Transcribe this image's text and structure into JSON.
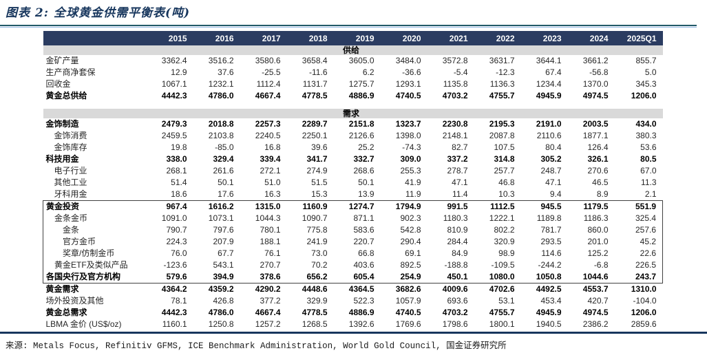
{
  "page": {
    "title": "图表 2: 全球黄金供需平衡表(吨)",
    "source": "来源: Metals Focus, Refinitiv GFMS, ICE Benchmark Administration, World Gold Council, 国金证券研究所"
  },
  "colors": {
    "header_bg": "#2b3c61",
    "band_bg": "#d9d9d9",
    "title_navy": "#17365d",
    "rule_teal": "#215968",
    "rule_light_blue": "#8db3e2",
    "box_border": "#404040"
  },
  "table": {
    "columns": [
      "2015",
      "2016",
      "2017",
      "2018",
      "2019",
      "2020",
      "2021",
      "2022",
      "2023",
      "2024",
      "2025Q1"
    ],
    "sections": [
      {
        "band": "供给",
        "rows": [
          {
            "label": "金矿产量",
            "indent": 0,
            "bold": false,
            "box": false,
            "values": [
              "3362.4",
              "3516.2",
              "3580.6",
              "3658.4",
              "3605.0",
              "3484.0",
              "3572.8",
              "3631.7",
              "3644.1",
              "3661.2",
              "855.7"
            ]
          },
          {
            "label": "生产商净套保",
            "indent": 0,
            "bold": false,
            "box": false,
            "values": [
              "12.9",
              "37.6",
              "-25.5",
              "-11.6",
              "6.2",
              "-36.6",
              "-5.4",
              "-12.3",
              "67.4",
              "-56.8",
              "5.0"
            ]
          },
          {
            "label": "回收金",
            "indent": 0,
            "bold": false,
            "box": false,
            "values": [
              "1067.1",
              "1232.1",
              "1112.4",
              "1131.7",
              "1275.7",
              "1293.1",
              "1135.8",
              "1136.3",
              "1234.4",
              "1370.0",
              "345.3"
            ]
          },
          {
            "label": "黄金总供给",
            "indent": 0,
            "bold": true,
            "box": false,
            "values": [
              "4442.3",
              "4786.0",
              "4667.4",
              "4778.5",
              "4886.9",
              "4740.5",
              "4703.2",
              "4755.7",
              "4945.9",
              "4974.5",
              "1206.0"
            ]
          }
        ]
      },
      {
        "band": "需求",
        "rows": [
          {
            "label": "金饰制造",
            "indent": 0,
            "bold": true,
            "box": false,
            "values": [
              "2479.3",
              "2018.8",
              "2257.3",
              "2289.7",
              "2151.8",
              "1323.7",
              "2230.8",
              "2195.3",
              "2191.0",
              "2003.5",
              "434.0"
            ]
          },
          {
            "label": "金饰消费",
            "indent": 1,
            "bold": false,
            "box": false,
            "values": [
              "2459.5",
              "2103.8",
              "2240.5",
              "2250.1",
              "2126.6",
              "1398.0",
              "2148.1",
              "2087.8",
              "2110.6",
              "1877.1",
              "380.3"
            ]
          },
          {
            "label": "金饰库存",
            "indent": 1,
            "bold": false,
            "box": false,
            "values": [
              "19.8",
              "-85.0",
              "16.8",
              "39.6",
              "25.2",
              "-74.3",
              "82.7",
              "107.5",
              "80.4",
              "126.4",
              "53.6"
            ]
          },
          {
            "label": "科技用金",
            "indent": 0,
            "bold": true,
            "box": false,
            "values": [
              "338.0",
              "329.4",
              "339.4",
              "341.7",
              "332.7",
              "309.0",
              "337.2",
              "314.8",
              "305.2",
              "326.1",
              "80.5"
            ]
          },
          {
            "label": "电子行业",
            "indent": 1,
            "bold": false,
            "box": false,
            "values": [
              "268.1",
              "261.6",
              "272.1",
              "274.9",
              "268.6",
              "255.3",
              "278.7",
              "257.7",
              "248.7",
              "270.6",
              "67.0"
            ]
          },
          {
            "label": "其他工业",
            "indent": 1,
            "bold": false,
            "box": false,
            "values": [
              "51.4",
              "50.1",
              "51.0",
              "51.5",
              "50.1",
              "41.9",
              "47.1",
              "46.8",
              "47.1",
              "46.5",
              "11.3"
            ]
          },
          {
            "label": "牙科用金",
            "indent": 1,
            "bold": false,
            "box": false,
            "values": [
              "18.6",
              "17.6",
              "16.3",
              "15.3",
              "13.9",
              "11.9",
              "11.4",
              "10.3",
              "9.4",
              "8.9",
              "2.1"
            ]
          },
          {
            "label": "黄金投资",
            "indent": 0,
            "bold": true,
            "box": true,
            "values": [
              "967.4",
              "1616.2",
              "1315.0",
              "1160.9",
              "1274.7",
              "1794.9",
              "991.5",
              "1112.5",
              "945.5",
              "1179.5",
              "551.9"
            ]
          },
          {
            "label": "金条金币",
            "indent": 1,
            "bold": false,
            "box": true,
            "values": [
              "1091.0",
              "1073.1",
              "1044.3",
              "1090.7",
              "871.1",
              "902.3",
              "1180.3",
              "1222.1",
              "1189.8",
              "1186.3",
              "325.4"
            ]
          },
          {
            "label": "金条",
            "indent": 2,
            "bold": false,
            "box": true,
            "values": [
              "790.7",
              "797.6",
              "780.1",
              "775.8",
              "583.6",
              "542.8",
              "810.9",
              "802.2",
              "781.7",
              "860.0",
              "257.6"
            ]
          },
          {
            "label": "官方金币",
            "indent": 2,
            "bold": false,
            "box": true,
            "values": [
              "224.3",
              "207.9",
              "188.1",
              "241.9",
              "220.7",
              "290.4",
              "284.4",
              "320.9",
              "293.5",
              "201.0",
              "45.2"
            ]
          },
          {
            "label": "奖章/仿制金币",
            "indent": 2,
            "bold": false,
            "box": true,
            "values": [
              "76.0",
              "67.7",
              "76.1",
              "73.0",
              "66.8",
              "69.1",
              "84.9",
              "98.9",
              "114.6",
              "125.2",
              "22.6"
            ]
          },
          {
            "label": "黄金ETF及类似产品",
            "indent": 1,
            "bold": false,
            "box": true,
            "values": [
              "-123.6",
              "543.1",
              "270.7",
              "70.2",
              "403.6",
              "892.5",
              "-188.8",
              "-109.5",
              "-244.2",
              "-6.8",
              "226.5"
            ]
          },
          {
            "label": "各国央行及官方机构",
            "indent": 0,
            "bold": true,
            "box": true,
            "values": [
              "579.6",
              "394.9",
              "378.6",
              "656.2",
              "605.4",
              "254.9",
              "450.1",
              "1080.0",
              "1050.8",
              "1044.6",
              "243.7"
            ]
          },
          {
            "label": "黄金需求",
            "indent": 0,
            "bold": true,
            "box": false,
            "values": [
              "4364.2",
              "4359.2",
              "4290.2",
              "4448.6",
              "4364.5",
              "3682.6",
              "4009.6",
              "4702.6",
              "4492.5",
              "4553.7",
              "1310.0"
            ]
          },
          {
            "label": "场外投资及其他",
            "indent": 0,
            "bold": false,
            "box": false,
            "values": [
              "78.1",
              "426.8",
              "377.2",
              "329.9",
              "522.3",
              "1057.9",
              "693.6",
              "53.1",
              "453.4",
              "420.7",
              "-104.0"
            ]
          },
          {
            "label": "黄金总需求",
            "indent": 0,
            "bold": true,
            "box": false,
            "values": [
              "4442.3",
              "4786.0",
              "4667.4",
              "4778.5",
              "4886.9",
              "4740.5",
              "4703.2",
              "4755.7",
              "4945.9",
              "4974.5",
              "1206.0"
            ]
          },
          {
            "label": "LBMA 金价 (US$/oz)",
            "indent": 0,
            "bold": false,
            "box": false,
            "values": [
              "1160.1",
              "1250.8",
              "1257.2",
              "1268.5",
              "1392.6",
              "1769.6",
              "1798.6",
              "1800.1",
              "1940.5",
              "2386.2",
              "2859.6"
            ]
          }
        ]
      }
    ]
  }
}
